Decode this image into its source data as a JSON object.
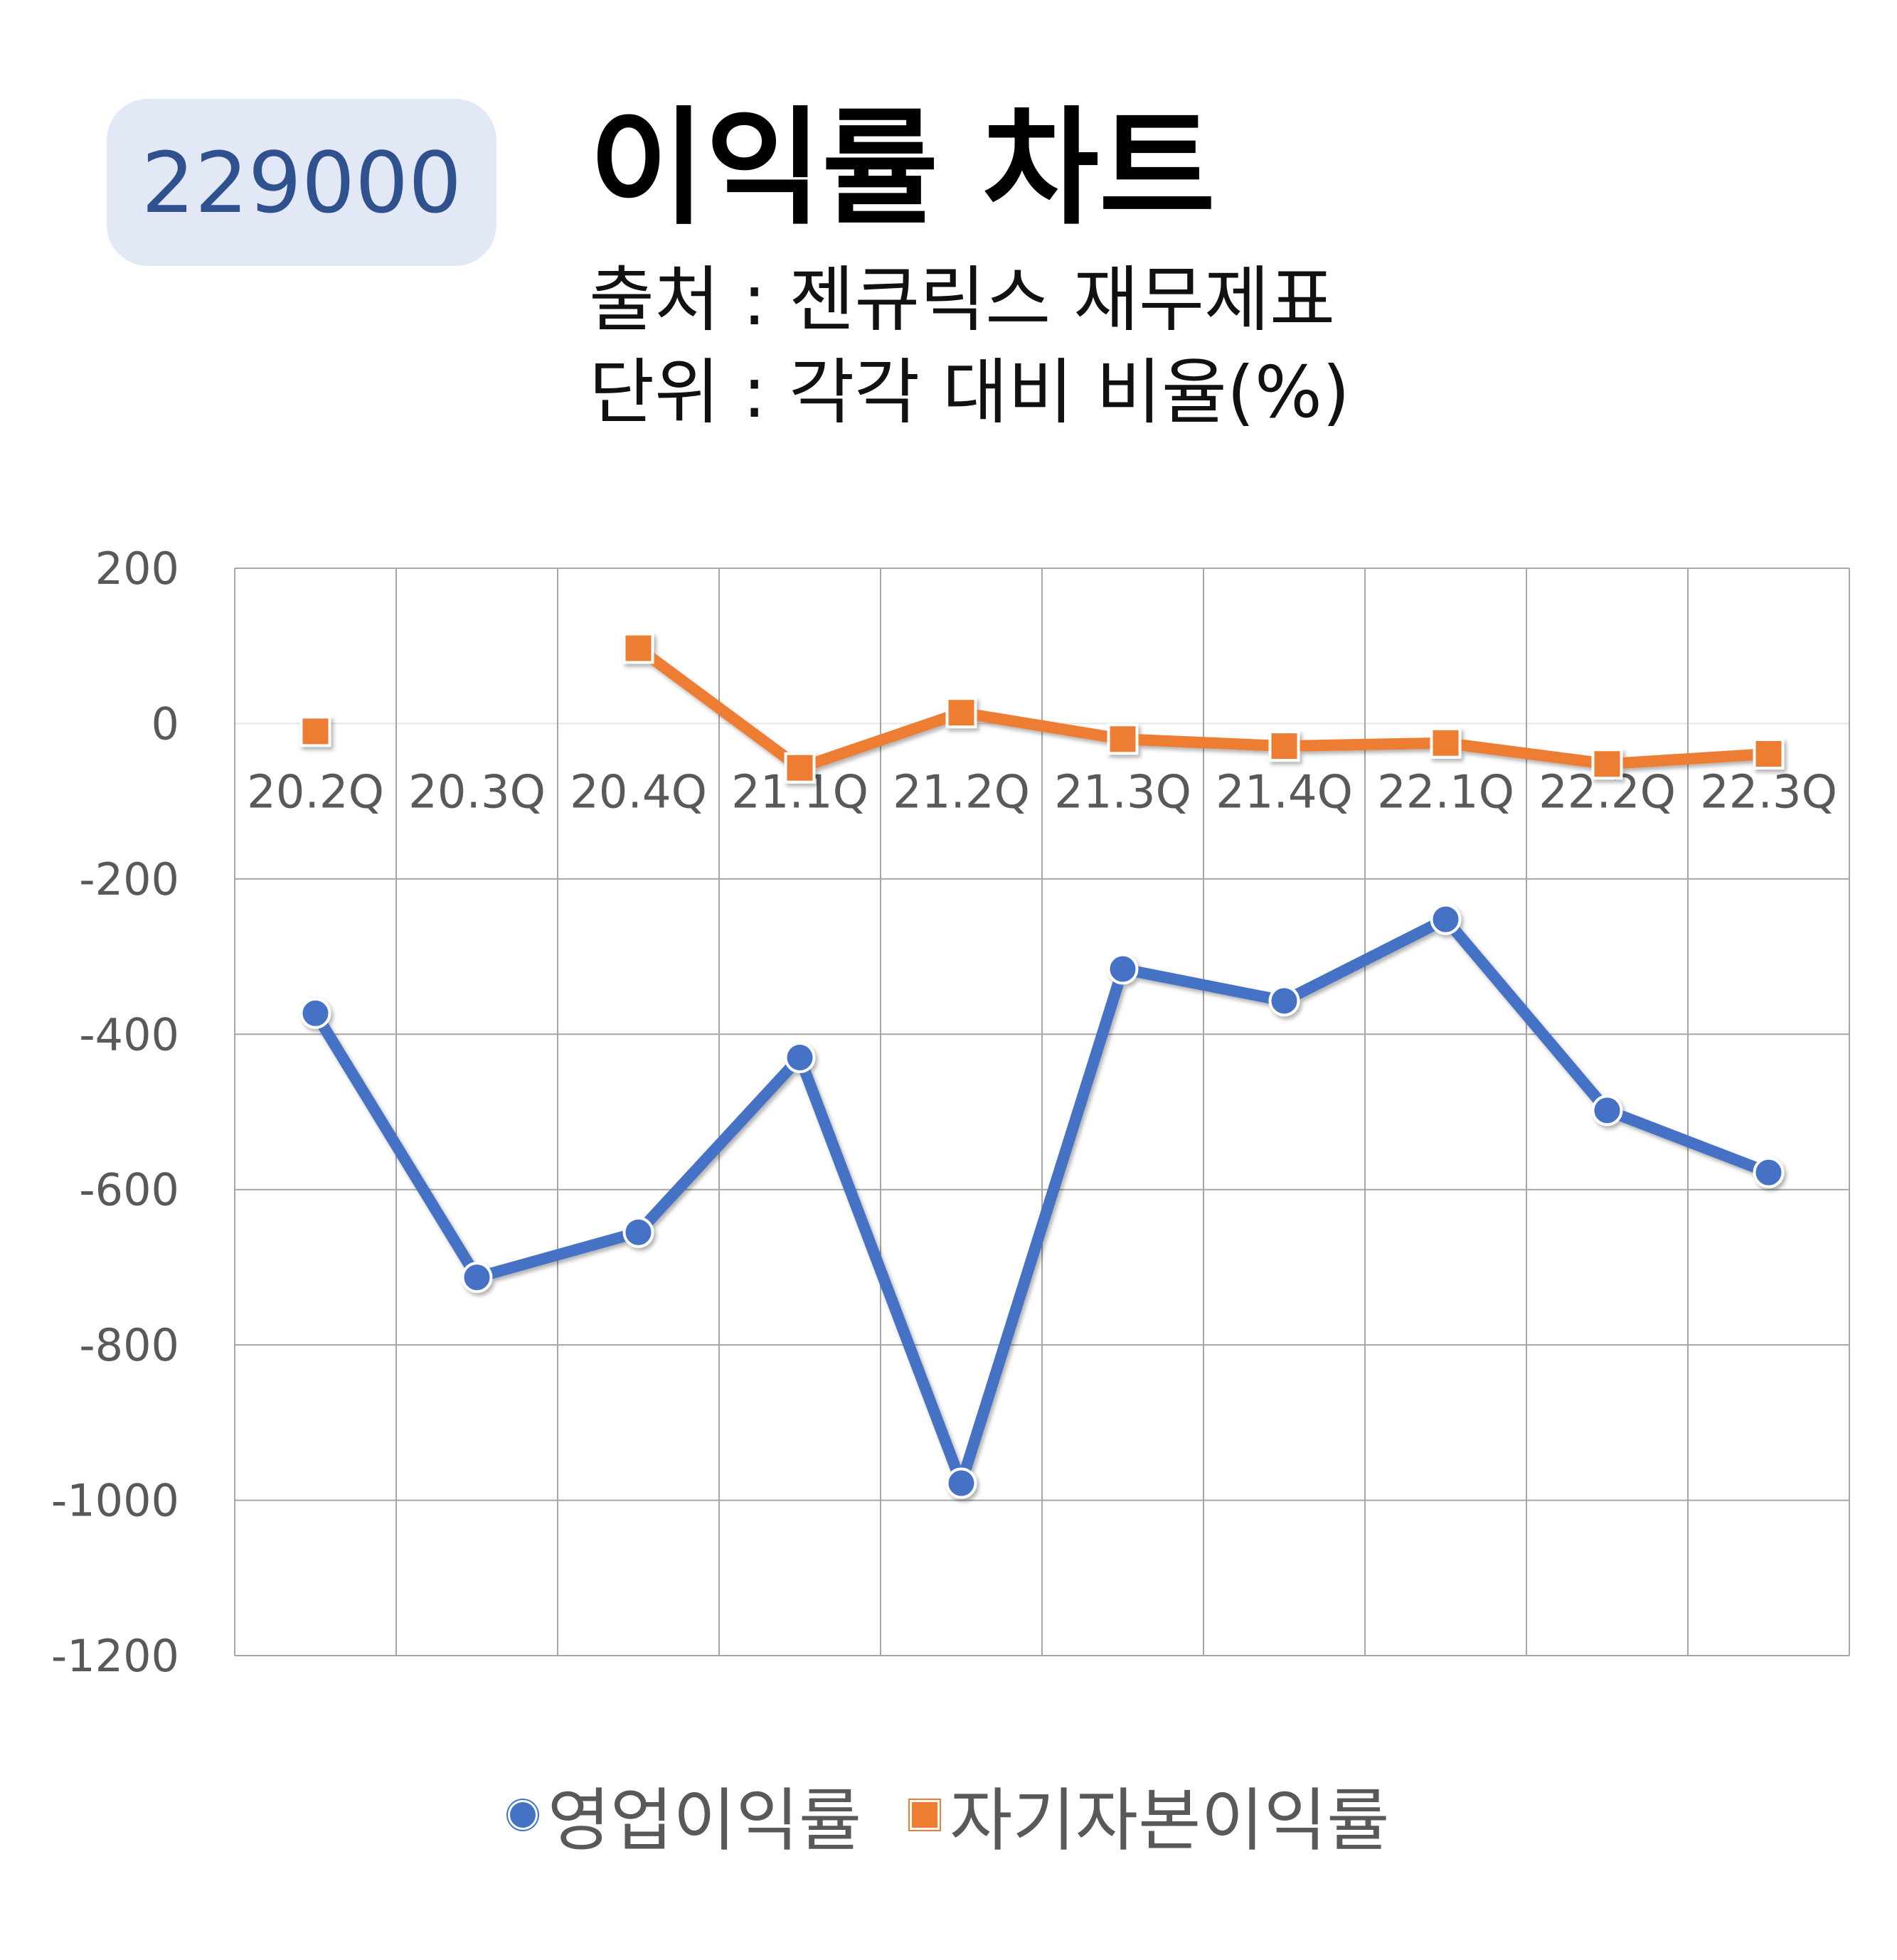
{
  "badge": {
    "code": "229000"
  },
  "header": {
    "title": "이익률 차트",
    "source": "출처 : 젠큐릭스 재무제표",
    "unit": "단위 : 각각 대비 비율(%)"
  },
  "colors": {
    "operating": "#4472c4",
    "roe": "#ed7d31",
    "badge_bg": "#e2e8f5",
    "badge_text": "#2f528f"
  },
  "chart_data": {
    "type": "line",
    "categories": [
      "20.2Q",
      "20.3Q",
      "20.4Q",
      "21.1Q",
      "21.2Q",
      "21.3Q",
      "21.4Q",
      "22.1Q",
      "22.2Q",
      "22.3Q"
    ],
    "ylim": [
      -1200,
      200
    ],
    "yticks": [
      200,
      0,
      -200,
      -400,
      -600,
      -800,
      -1000,
      -1200
    ],
    "grid": true,
    "legend": "bottom",
    "series": [
      {
        "name": "영업이익률",
        "marker": "circle",
        "color": "#4472c4",
        "values": [
          -373,
          -713,
          -655,
          -430,
          -978,
          -316,
          -357,
          -252,
          -498,
          -578
        ]
      },
      {
        "name": "자기자본이익률",
        "marker": "square",
        "color": "#ed7d31",
        "values": [
          -10,
          null,
          97,
          -57,
          14,
          -20,
          -29,
          -25,
          -52,
          -39
        ]
      }
    ]
  }
}
